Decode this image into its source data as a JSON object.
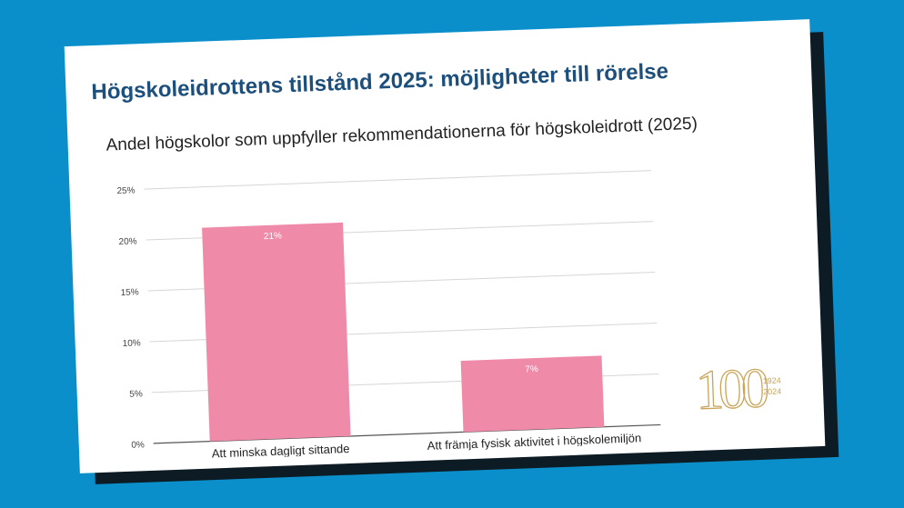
{
  "slide": {
    "title": "Högskoleidrottens tillstånd 2025: möjligheter till rörelse"
  },
  "chart_data": {
    "type": "bar",
    "title": "Andel högskolor som uppfyller rekommendationerna för högskoleidrott (2025)",
    "categories": [
      "Att minska dagligt sittande",
      "Att främja fysisk aktivitet i högskolemiljön"
    ],
    "values": [
      21,
      7
    ],
    "value_labels": [
      "21%",
      "7%"
    ],
    "ylim": [
      0,
      25
    ],
    "yticks": [
      0,
      5,
      10,
      15,
      20,
      25
    ],
    "ytick_labels": [
      "0%",
      "5%",
      "10%",
      "15%",
      "20%",
      "25%"
    ],
    "grid": true,
    "bar_color": "#f08aa9"
  },
  "logo": {
    "mark": "100",
    "year_start": "1924",
    "year_end": "2024",
    "color": "#c9a55a"
  }
}
